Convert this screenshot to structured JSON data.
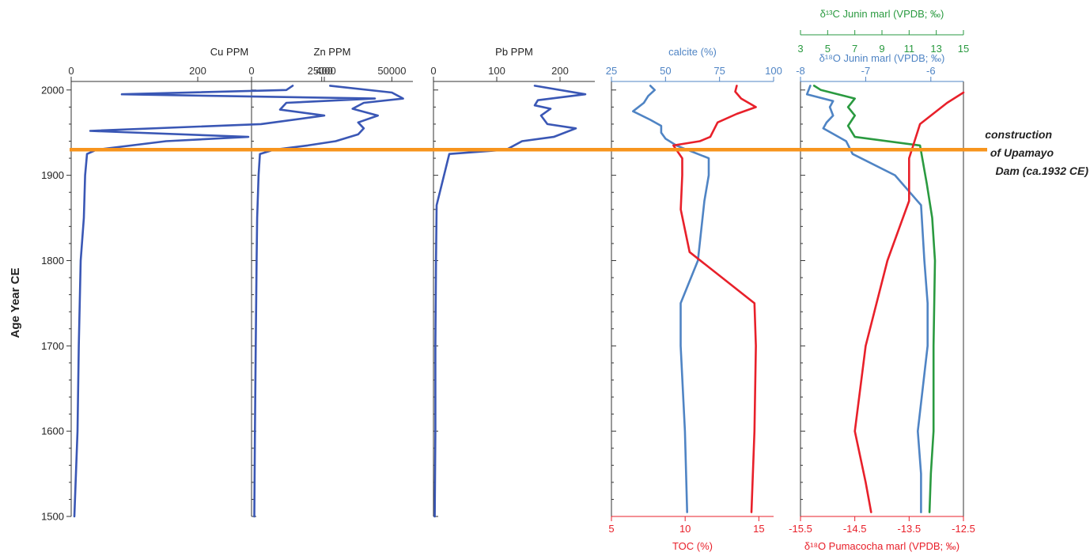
{
  "chart_data": {
    "type": "line",
    "y_axis": {
      "label": "Age Year CE",
      "range": [
        1500,
        2010
      ],
      "ticks": [
        1500,
        1600,
        1700,
        1800,
        1900,
        2000
      ]
    },
    "event": {
      "year": 1930,
      "color": "#f7941d",
      "label_lines": [
        "construction",
        "of Upamayo",
        "Dam (ca.1932 CE)"
      ]
    },
    "colors": {
      "blue": "#3a57b5",
      "light_blue": "#4f84c4",
      "red": "#e8202a",
      "green": "#2a9a40",
      "axis": "#333333"
    },
    "panels": [
      {
        "id": "cu",
        "axis": {
          "label": "Cu PPM",
          "range": [
            0,
            500
          ],
          "ticks": [
            0,
            200,
            400
          ],
          "color": "#333333"
        },
        "series": [
          {
            "color": "#3a57b5",
            "points": [
              [
                5,
                1500
              ],
              [
                10,
                1600
              ],
              [
                12,
                1700
              ],
              [
                15,
                1800
              ],
              [
                20,
                1850
              ],
              [
                22,
                1900
              ],
              [
                25,
                1925
              ],
              [
                40,
                1930
              ],
              [
                150,
                1940
              ],
              [
                280,
                1945
              ],
              [
                30,
                1952
              ],
              [
                300,
                1960
              ],
              [
                400,
                1970
              ],
              [
                330,
                1977
              ],
              [
                340,
                1985
              ],
              [
                480,
                1990
              ],
              [
                80,
                1995
              ],
              [
                340,
                2000
              ],
              [
                350,
                2005
              ]
            ]
          }
        ]
      },
      {
        "id": "zn",
        "axis": {
          "label": "Zn PPM",
          "range": [
            0,
            57500
          ],
          "ticks": [
            0,
            25000,
            50000
          ],
          "color": "#333333"
        },
        "series": [
          {
            "color": "#3a57b5",
            "points": [
              [
                1000,
                1500
              ],
              [
                1200,
                1600
              ],
              [
                1500,
                1700
              ],
              [
                1800,
                1800
              ],
              [
                2000,
                1850
              ],
              [
                2500,
                1900
              ],
              [
                3000,
                1925
              ],
              [
                8000,
                1930
              ],
              [
                20000,
                1935
              ],
              [
                30000,
                1940
              ],
              [
                38000,
                1948
              ],
              [
                40000,
                1955
              ],
              [
                38000,
                1962
              ],
              [
                45000,
                1970
              ],
              [
                36000,
                1978
              ],
              [
                40000,
                1985
              ],
              [
                54000,
                1990
              ],
              [
                50000,
                1997
              ],
              [
                28000,
                2005
              ]
            ]
          }
        ]
      },
      {
        "id": "pb",
        "axis": {
          "label": "Pb PPM",
          "range": [
            0,
            255
          ],
          "ticks": [
            0,
            100,
            200
          ],
          "color": "#333333"
        },
        "series": [
          {
            "color": "#3a57b5",
            "points": [
              [
                2,
                1500
              ],
              [
                3,
                1600
              ],
              [
                3,
                1700
              ],
              [
                4,
                1800
              ],
              [
                5,
                1865
              ],
              [
                25,
                1925
              ],
              [
                115,
                1930
              ],
              [
                140,
                1940
              ],
              [
                190,
                1945
              ],
              [
                225,
                1955
              ],
              [
                180,
                1960
              ],
              [
                170,
                1970
              ],
              [
                185,
                1978
              ],
              [
                160,
                1982
              ],
              [
                165,
                1988
              ],
              [
                240,
                1995
              ],
              [
                160,
                2005
              ]
            ]
          }
        ]
      },
      {
        "id": "calcite_toc",
        "axis": {
          "label": "calcite (%)",
          "range": [
            25,
            100
          ],
          "ticks": [
            25,
            50,
            75,
            100
          ],
          "color": "#4f84c4"
        },
        "bottom_axis": {
          "label": "TOC (%)",
          "range": [
            5,
            16
          ],
          "ticks": [
            5,
            10,
            15
          ],
          "color": "#e8202a"
        },
        "series": [
          {
            "name": "calcite",
            "color": "#4f84c4",
            "axis": "top",
            "points": [
              [
                60,
                1505
              ],
              [
                59,
                1600
              ],
              [
                57,
                1700
              ],
              [
                57,
                1750
              ],
              [
                65,
                1800
              ],
              [
                68,
                1870
              ],
              [
                70,
                1900
              ],
              [
                70,
                1920
              ],
              [
                55,
                1935
              ],
              [
                50,
                1943
              ],
              [
                48,
                1950
              ],
              [
                48,
                1958
              ],
              [
                43,
                1965
              ],
              [
                35,
                1975
              ],
              [
                40,
                1985
              ],
              [
                42,
                1993
              ],
              [
                45,
                2000
              ],
              [
                43,
                2005
              ]
            ]
          },
          {
            "name": "TOC",
            "color": "#e8202a",
            "axis": "bottom",
            "points": [
              [
                14.5,
                1505
              ],
              [
                14.7,
                1600
              ],
              [
                14.8,
                1700
              ],
              [
                14.7,
                1750
              ],
              [
                12.5,
                1780
              ],
              [
                10.3,
                1810
              ],
              [
                9.7,
                1860
              ],
              [
                9.8,
                1900
              ],
              [
                9.8,
                1920
              ],
              [
                9.2,
                1935
              ],
              [
                11,
                1940
              ],
              [
                11.7,
                1945
              ],
              [
                12.2,
                1962
              ],
              [
                13.5,
                1972
              ],
              [
                14.8,
                1980
              ],
              [
                13.8,
                1990
              ],
              [
                13.4,
                1998
              ],
              [
                13.5,
                2005
              ]
            ]
          }
        ]
      },
      {
        "id": "isotopes",
        "axis": {
          "label": "δ¹⁸O Junin marl (VPDB; ‰)",
          "range": [
            -8,
            -5.5
          ],
          "ticks": [
            -8,
            -7,
            -6
          ],
          "color": "#4f84c4"
        },
        "top2_axis": {
          "label": "δ¹³C Junin marl (VPDB; ‰)",
          "range": [
            3,
            15
          ],
          "ticks": [
            3,
            5,
            7,
            9,
            11,
            13,
            15
          ],
          "color": "#2a9a40"
        },
        "bottom_axis": {
          "label": "δ¹⁸O Pumacocha marl (VPDB; ‰)",
          "range": [
            -15.5,
            -12.5
          ],
          "ticks": [
            -15.5,
            -14.5,
            -13.5,
            -12.5
          ],
          "color": "#e8202a"
        },
        "series": [
          {
            "name": "d18O Junin",
            "color": "#4f84c4",
            "axis": "top",
            "points": [
              [
                -6.15,
                1505
              ],
              [
                -6.15,
                1550
              ],
              [
                -6.2,
                1600
              ],
              [
                -6.05,
                1700
              ],
              [
                -6.05,
                1750
              ],
              [
                -6.1,
                1800
              ],
              [
                -6.15,
                1865
              ],
              [
                -6.55,
                1900
              ],
              [
                -7.2,
                1925
              ],
              [
                -7.3,
                1940
              ],
              [
                -7.65,
                1955
              ],
              [
                -7.6,
                1962
              ],
              [
                -7.5,
                1970
              ],
              [
                -7.55,
                1980
              ],
              [
                -7.5,
                1987
              ],
              [
                -7.9,
                1995
              ],
              [
                -7.85,
                2005
              ]
            ]
          },
          {
            "name": "d13C Junin",
            "color": "#2a9a40",
            "axis": "top2",
            "points": [
              [
                12.5,
                1505
              ],
              [
                12.6,
                1550
              ],
              [
                12.8,
                1600
              ],
              [
                12.8,
                1700
              ],
              [
                12.9,
                1800
              ],
              [
                12.7,
                1850
              ],
              [
                12.3,
                1890
              ],
              [
                11.8,
                1935
              ],
              [
                7.0,
                1945
              ],
              [
                6.5,
                1958
              ],
              [
                7.0,
                1970
              ],
              [
                6.5,
                1980
              ],
              [
                7.0,
                1990
              ],
              [
                4.5,
                2000
              ],
              [
                4.0,
                2005
              ]
            ]
          },
          {
            "name": "d18O Pumacocha",
            "color": "#e8202a",
            "axis": "bottom",
            "points": [
              [
                -14.2,
                1505
              ],
              [
                -14.3,
                1540
              ],
              [
                -14.5,
                1600
              ],
              [
                -14.3,
                1700
              ],
              [
                -13.9,
                1800
              ],
              [
                -13.5,
                1870
              ],
              [
                -13.5,
                1920
              ],
              [
                -13.3,
                1960
              ],
              [
                -12.8,
                1985
              ],
              [
                -12.5,
                1997
              ]
            ]
          }
        ]
      }
    ]
  }
}
